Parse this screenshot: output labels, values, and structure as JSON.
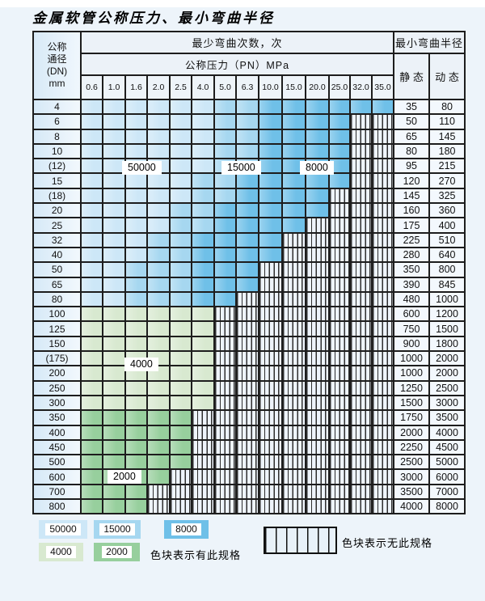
{
  "title": "金属软管公称压力、最小弯曲半径",
  "colors": {
    "c50000": "#cde7f7",
    "c15000": "#a6d7f0",
    "c8000": "#6fc0e8",
    "c4000": "#d8e9d0",
    "c2000": "#97cf9d",
    "hatch": "#eef4fb"
  },
  "table": {
    "header": {
      "dn_lines": [
        "公称",
        "通径",
        "(DN)",
        "mm"
      ],
      "bend_times_label": "最少弯曲次数，次",
      "pressure_label": "公称压力（PN）MPa",
      "radius_label": "最小弯曲半径",
      "static_label": "静 态",
      "dynamic_label": "动 态",
      "pressure_values": [
        "0.6",
        "1.0",
        "1.6",
        "2.0",
        "2.5",
        "4.0",
        "5.0",
        "6.3",
        "10.0",
        "15.0",
        "20.0",
        "25.0",
        "32.0",
        "35.0"
      ]
    },
    "zone_legend_map": {
      "5": "50000",
      "1": "15000",
      "8": "8000",
      "4": "4000",
      "2": "2000",
      "x": "none"
    },
    "rows": [
      {
        "dn": "4",
        "cells": [
          "5",
          "5",
          "5",
          "5",
          "5",
          "5",
          "1",
          "1",
          "8",
          "8",
          "8",
          "8",
          "8",
          "8"
        ],
        "static": "35",
        "dynamic": "80"
      },
      {
        "dn": "6",
        "cells": [
          "5",
          "5",
          "5",
          "5",
          "5",
          "5",
          "1",
          "1",
          "8",
          "8",
          "8",
          "8",
          "x",
          "x"
        ],
        "static": "50",
        "dynamic": "110"
      },
      {
        "dn": "8",
        "cells": [
          "5",
          "5",
          "5",
          "5",
          "5",
          "5",
          "1",
          "1",
          "8",
          "8",
          "8",
          "8",
          "x",
          "x"
        ],
        "static": "65",
        "dynamic": "145"
      },
      {
        "dn": "10",
        "cells": [
          "5",
          "5",
          "5",
          "5",
          "5",
          "5",
          "1",
          "1",
          "8",
          "8",
          "8",
          "8",
          "x",
          "x"
        ],
        "static": "80",
        "dynamic": "180"
      },
      {
        "dn": "(12)",
        "cells": [
          "5",
          "5",
          "5",
          "5",
          "5",
          "5",
          "1",
          "1",
          "8",
          "8",
          "8",
          "8",
          "x",
          "x"
        ],
        "static": "95",
        "dynamic": "215"
      },
      {
        "dn": "15",
        "cells": [
          "5",
          "5",
          "5",
          "5",
          "5",
          "1",
          "1",
          "8",
          "8",
          "8",
          "8",
          "8",
          "x",
          "x"
        ],
        "static": "120",
        "dynamic": "270"
      },
      {
        "dn": "(18)",
        "cells": [
          "5",
          "5",
          "5",
          "5",
          "5",
          "1",
          "1",
          "8",
          "8",
          "8",
          "8",
          "x",
          "x",
          "x"
        ],
        "static": "145",
        "dynamic": "325"
      },
      {
        "dn": "20",
        "cells": [
          "5",
          "5",
          "5",
          "5",
          "1",
          "1",
          "8",
          "8",
          "8",
          "8",
          "8",
          "x",
          "x",
          "x"
        ],
        "static": "160",
        "dynamic": "360"
      },
      {
        "dn": "25",
        "cells": [
          "5",
          "5",
          "5",
          "5",
          "1",
          "1",
          "8",
          "8",
          "8",
          "8",
          "x",
          "x",
          "x",
          "x"
        ],
        "static": "175",
        "dynamic": "400"
      },
      {
        "dn": "32",
        "cells": [
          "5",
          "5",
          "5",
          "1",
          "1",
          "8",
          "8",
          "8",
          "8",
          "x",
          "x",
          "x",
          "x",
          "x"
        ],
        "static": "225",
        "dynamic": "510"
      },
      {
        "dn": "40",
        "cells": [
          "5",
          "5",
          "5",
          "1",
          "1",
          "8",
          "8",
          "8",
          "8",
          "x",
          "x",
          "x",
          "x",
          "x"
        ],
        "static": "280",
        "dynamic": "640"
      },
      {
        "dn": "50",
        "cells": [
          "5",
          "5",
          "1",
          "1",
          "1",
          "8",
          "8",
          "8",
          "x",
          "x",
          "x",
          "x",
          "x",
          "x"
        ],
        "static": "350",
        "dynamic": "800"
      },
      {
        "dn": "65",
        "cells": [
          "5",
          "5",
          "1",
          "1",
          "1",
          "8",
          "8",
          "8",
          "x",
          "x",
          "x",
          "x",
          "x",
          "x"
        ],
        "static": "390",
        "dynamic": "845"
      },
      {
        "dn": "80",
        "cells": [
          "5",
          "5",
          "1",
          "1",
          "1",
          "8",
          "8",
          "x",
          "x",
          "x",
          "x",
          "x",
          "x",
          "x"
        ],
        "static": "480",
        "dynamic": "1000"
      },
      {
        "dn": "100",
        "cells": [
          "4",
          "4",
          "4",
          "4",
          "4",
          "4",
          "x",
          "x",
          "x",
          "x",
          "x",
          "x",
          "x",
          "x"
        ],
        "static": "600",
        "dynamic": "1200"
      },
      {
        "dn": "125",
        "cells": [
          "4",
          "4",
          "4",
          "4",
          "4",
          "4",
          "x",
          "x",
          "x",
          "x",
          "x",
          "x",
          "x",
          "x"
        ],
        "static": "750",
        "dynamic": "1500"
      },
      {
        "dn": "150",
        "cells": [
          "4",
          "4",
          "4",
          "4",
          "4",
          "4",
          "x",
          "x",
          "x",
          "x",
          "x",
          "x",
          "x",
          "x"
        ],
        "static": "900",
        "dynamic": "1800"
      },
      {
        "dn": "(175)",
        "cells": [
          "4",
          "4",
          "4",
          "4",
          "4",
          "4",
          "x",
          "x",
          "x",
          "x",
          "x",
          "x",
          "x",
          "x"
        ],
        "static": "1000",
        "dynamic": "2000"
      },
      {
        "dn": "200",
        "cells": [
          "4",
          "4",
          "4",
          "4",
          "4",
          "4",
          "x",
          "x",
          "x",
          "x",
          "x",
          "x",
          "x",
          "x"
        ],
        "static": "1000",
        "dynamic": "2000"
      },
      {
        "dn": "250",
        "cells": [
          "4",
          "4",
          "4",
          "4",
          "4",
          "4",
          "x",
          "x",
          "x",
          "x",
          "x",
          "x",
          "x",
          "x"
        ],
        "static": "1250",
        "dynamic": "2500"
      },
      {
        "dn": "300",
        "cells": [
          "4",
          "4",
          "4",
          "4",
          "4",
          "4",
          "x",
          "x",
          "x",
          "x",
          "x",
          "x",
          "x",
          "x"
        ],
        "static": "1500",
        "dynamic": "3000"
      },
      {
        "dn": "350",
        "cells": [
          "2",
          "2",
          "2",
          "2",
          "2",
          "x",
          "x",
          "x",
          "x",
          "x",
          "x",
          "x",
          "x",
          "x"
        ],
        "static": "1750",
        "dynamic": "3500"
      },
      {
        "dn": "400",
        "cells": [
          "2",
          "2",
          "2",
          "2",
          "2",
          "x",
          "x",
          "x",
          "x",
          "x",
          "x",
          "x",
          "x",
          "x"
        ],
        "static": "2000",
        "dynamic": "4000"
      },
      {
        "dn": "450",
        "cells": [
          "2",
          "2",
          "2",
          "2",
          "2",
          "x",
          "x",
          "x",
          "x",
          "x",
          "x",
          "x",
          "x",
          "x"
        ],
        "static": "2250",
        "dynamic": "4500"
      },
      {
        "dn": "500",
        "cells": [
          "2",
          "2",
          "2",
          "2",
          "2",
          "x",
          "x",
          "x",
          "x",
          "x",
          "x",
          "x",
          "x",
          "x"
        ],
        "static": "2500",
        "dynamic": "5000"
      },
      {
        "dn": "600",
        "cells": [
          "2",
          "2",
          "2",
          "2",
          "x",
          "x",
          "x",
          "x",
          "x",
          "x",
          "x",
          "x",
          "x",
          "x"
        ],
        "static": "3000",
        "dynamic": "6000"
      },
      {
        "dn": "700",
        "cells": [
          "2",
          "2",
          "2",
          "x",
          "x",
          "x",
          "x",
          "x",
          "x",
          "x",
          "x",
          "x",
          "x",
          "x"
        ],
        "static": "3500",
        "dynamic": "7000"
      },
      {
        "dn": "800",
        "cells": [
          "2",
          "2",
          "2",
          "x",
          "x",
          "x",
          "x",
          "x",
          "x",
          "x",
          "x",
          "x",
          "x",
          "x"
        ],
        "static": "4000",
        "dynamic": "8000"
      }
    ]
  },
  "overlays": [
    {
      "text": "50000"
    },
    {
      "text": "15000"
    },
    {
      "text": "8000"
    },
    {
      "text": "4000"
    },
    {
      "text": "2000"
    }
  ],
  "legend": {
    "items": [
      {
        "label": "50000"
      },
      {
        "label": "15000"
      },
      {
        "label": "8000"
      },
      {
        "label": "4000"
      },
      {
        "label": "2000"
      }
    ],
    "available_note": "色块表示有此规格",
    "unavailable_note": "色块表示无此规格"
  }
}
